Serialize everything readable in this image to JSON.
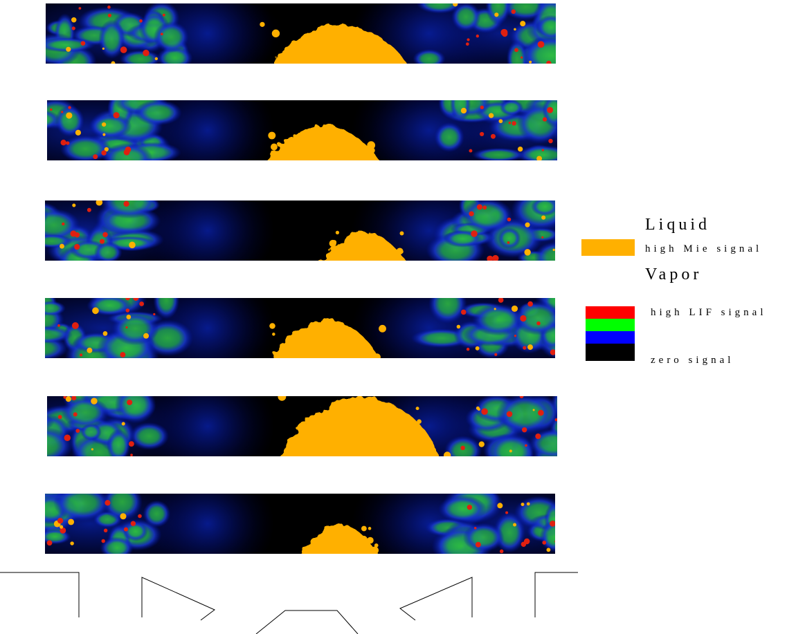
{
  "legend": {
    "liquid": {
      "title": "Liquid",
      "label": "high Mie signal"
    },
    "vapor": {
      "title": "Vapor",
      "high_label": "high LIF signal",
      "zero_label": "zero signal"
    }
  }
}
